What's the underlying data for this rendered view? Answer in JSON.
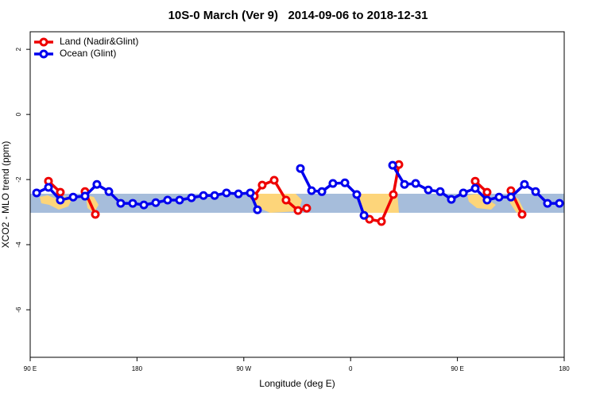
{
  "chart_data": {
    "type": "line",
    "title": "10S-0 March (Ver 9)   2014-09-06 to 2018-12-31",
    "x_label": "Longitude (deg E)",
    "y_label": "XCO2 - MLO trend (ppm)",
    "xlim": [
      90,
      540
    ],
    "ylim": [
      -7.46,
      2.54
    ],
    "xticks": [
      {
        "value": 90,
        "label": "90 E"
      },
      180,
      {
        "value": 270,
        "label": "90 W"
      },
      {
        "value": 360,
        "label": "0"
      },
      {
        "value": 450,
        "label": "90 E"
      },
      {
        "value": 540,
        "label": "180"
      }
    ],
    "yticks": [
      -6,
      -4,
      -2,
      0,
      2
    ],
    "legend": "top-left",
    "series": [
      {
        "name": "Land (Nadir&Glint)",
        "color": "#ee0000",
        "x": [
          105.4,
          115.4,
          null,
          136.2,
          144.9,
          null,
          278.8,
          285.5,
          295.6,
          305.6,
          315.7,
          323,
          null,
          375.9,
          386,
          396,
          400.7,
          null,
          465,
          475,
          null,
          495.1,
          504.5
        ],
        "values": [
          -2.05,
          -2.39,
          null,
          -2.37,
          -3.07,
          null,
          -2.51,
          -2.17,
          -2.02,
          -2.63,
          -2.95,
          -2.88,
          null,
          -3.22,
          -3.29,
          -2.46,
          -1.54,
          null,
          -2.05,
          -2.39,
          null,
          -2.34,
          -3.07
        ]
      },
      {
        "name": "Ocean (Glint)",
        "color": "#0000ee",
        "x": [
          95.4,
          105.4,
          115.4,
          126.2,
          136.2,
          146.2,
          156.3,
          166.3,
          176.4,
          185.8,
          195.8,
          205.8,
          215.9,
          225.9,
          236,
          245.4,
          255.4,
          265.5,
          275.5,
          281.5,
          null,
          317.7,
          327.1,
          335.8,
          345.1,
          355.2,
          365.2,
          371.3,
          null,
          395.4,
          405.4,
          414.8,
          425.5,
          435.5,
          444.9,
          455,
          465,
          475,
          485.1,
          495.1,
          506.5,
          515.9,
          525.9,
          536
        ],
        "values": [
          -2.41,
          -2.24,
          -2.63,
          -2.54,
          -2.51,
          -2.15,
          -2.37,
          -2.73,
          -2.73,
          -2.78,
          -2.71,
          -2.63,
          -2.63,
          -2.56,
          -2.49,
          -2.49,
          -2.41,
          -2.44,
          -2.41,
          -2.93,
          null,
          -1.66,
          -2.34,
          -2.37,
          -2.12,
          -2.1,
          -2.46,
          -3.1,
          null,
          -1.56,
          -2.15,
          -2.12,
          -2.32,
          -2.37,
          -2.61,
          -2.41,
          -2.27,
          -2.63,
          -2.54,
          -2.54,
          -2.15,
          -2.37,
          -2.73,
          -2.73
        ]
      }
    ]
  }
}
